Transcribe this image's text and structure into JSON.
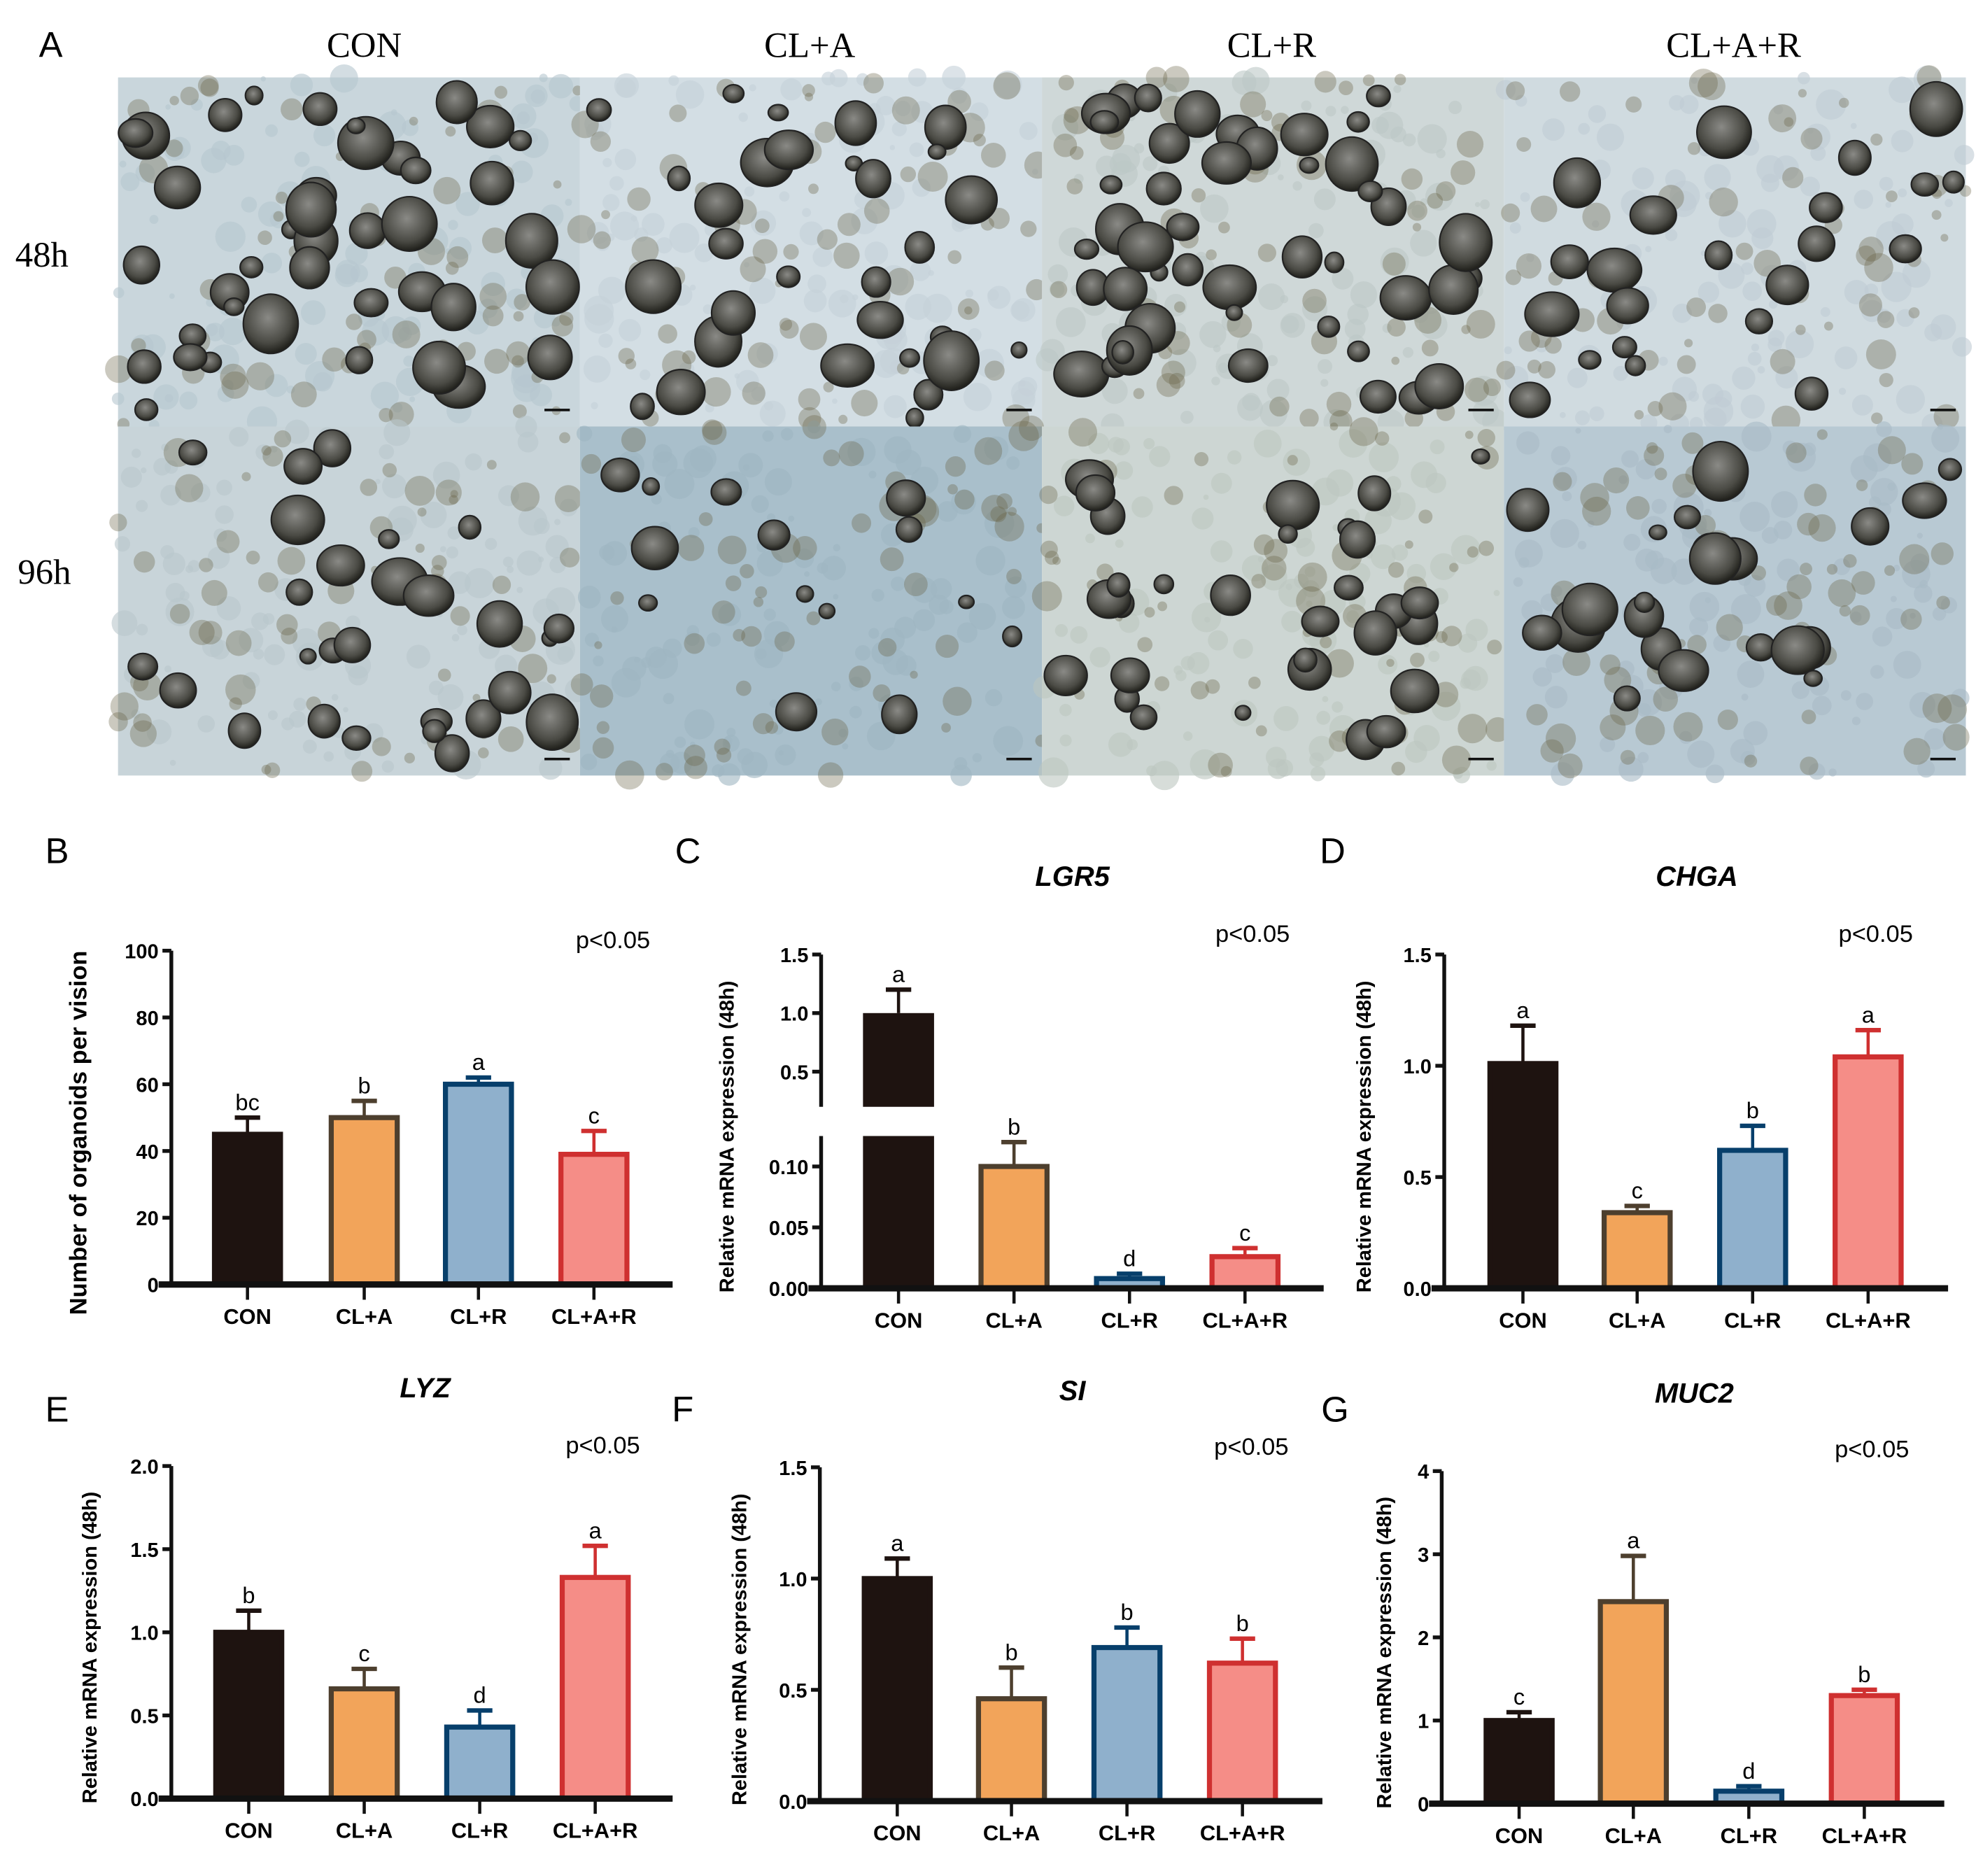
{
  "panel_a": {
    "letter": "A",
    "columns": [
      "CON",
      "CL+A",
      "CL+R",
      "CL+A+R"
    ],
    "rows": [
      "48h",
      "96h"
    ]
  },
  "colors": {
    "CON": {
      "fill": "#1e1310",
      "stroke": "#1e1310"
    },
    "CL+A": {
      "fill": "#f2a45a",
      "stroke": "#4d3f2e"
    },
    "CL+R": {
      "fill": "#8fb0cc",
      "stroke": "#073f6b"
    },
    "CL+A+R": {
      "fill": "#f58d87",
      "stroke": "#cf3030"
    }
  },
  "chart_data": [
    {
      "id": "B",
      "letter": "B",
      "type": "bar",
      "title": "",
      "ylabel": "Number of organoids per vision",
      "ylim": [
        0,
        100
      ],
      "yticks": [
        "0",
        "20",
        "40",
        "60",
        "80",
        "100"
      ],
      "p_label": "p<0.05",
      "categories": [
        "CON",
        "CL+A",
        "CL+R",
        "CL+A+R"
      ],
      "values": [
        45,
        50,
        60,
        39
      ],
      "errors": [
        5,
        5,
        2,
        7
      ],
      "sig_letters": [
        "bc",
        "b",
        "a",
        "c"
      ]
    },
    {
      "id": "C",
      "letter": "C",
      "type": "bar",
      "title": "LGR5",
      "ylabel": "Relative mRNA expression (48h)",
      "ylim": [
        0,
        1.5
      ],
      "axis_break": [
        0.125,
        0.2
      ],
      "yticks": [
        "0.00",
        "0.05",
        "0.10",
        "0.5",
        "1.0",
        "1.5"
      ],
      "p_label": "p<0.05",
      "categories": [
        "CON",
        "CL+A",
        "CL+R",
        "CL+A+R"
      ],
      "values": [
        1.0,
        0.1,
        0.008,
        0.026
      ],
      "errors": [
        0.2,
        0.02,
        0.004,
        0.007
      ],
      "sig_letters": [
        "a",
        "b",
        "d",
        "c"
      ]
    },
    {
      "id": "D",
      "letter": "D",
      "type": "bar",
      "title": "CHGA",
      "ylabel": "Relative mRNA expression (48h)",
      "ylim": [
        0,
        1.5
      ],
      "yticks": [
        "0.0",
        "0.5",
        "1.0",
        "1.5"
      ],
      "p_label": "p<0.05",
      "categories": [
        "CON",
        "CL+A",
        "CL+R",
        "CL+A+R"
      ],
      "values": [
        1.01,
        0.34,
        0.62,
        1.04
      ],
      "errors": [
        0.17,
        0.03,
        0.11,
        0.12
      ],
      "sig_letters": [
        "a",
        "c",
        "b",
        "a"
      ]
    },
    {
      "id": "E",
      "letter": "E",
      "type": "bar",
      "title": "LYZ",
      "ylabel": "Relative mRNA expression (48h)",
      "ylim": [
        0,
        2.0
      ],
      "yticks": [
        "0.0",
        "0.5",
        "1.0",
        "1.5",
        "2.0"
      ],
      "p_label": "p<0.05",
      "categories": [
        "CON",
        "CL+A",
        "CL+R",
        "CL+A+R"
      ],
      "values": [
        1.0,
        0.66,
        0.43,
        1.33
      ],
      "errors": [
        0.13,
        0.12,
        0.1,
        0.19
      ],
      "sig_letters": [
        "b",
        "c",
        "d",
        "a"
      ]
    },
    {
      "id": "F",
      "letter": "F",
      "type": "bar",
      "title": "SI",
      "ylabel": "Relative mRNA expression (48h)",
      "ylim": [
        0,
        1.5
      ],
      "yticks": [
        "0.0",
        "0.5",
        "1.0",
        "1.5"
      ],
      "p_label": "p<0.05",
      "categories": [
        "CON",
        "CL+A",
        "CL+R",
        "CL+A+R"
      ],
      "values": [
        1.0,
        0.46,
        0.69,
        0.62
      ],
      "errors": [
        0.09,
        0.14,
        0.09,
        0.11
      ],
      "sig_letters": [
        "a",
        "b",
        "b",
        "b"
      ]
    },
    {
      "id": "G",
      "letter": "G",
      "type": "bar",
      "title": "MUC2",
      "ylabel": "Relative mRNA expression (48h)",
      "ylim": [
        0,
        4
      ],
      "yticks": [
        "0",
        "1",
        "2",
        "3",
        "4"
      ],
      "p_label": "p<0.05",
      "categories": [
        "CON",
        "CL+A",
        "CL+R",
        "CL+A+R"
      ],
      "values": [
        1.0,
        2.43,
        0.15,
        1.3
      ],
      "errors": [
        0.1,
        0.55,
        0.06,
        0.07
      ],
      "sig_letters": [
        "c",
        "a",
        "d",
        "b"
      ]
    }
  ]
}
